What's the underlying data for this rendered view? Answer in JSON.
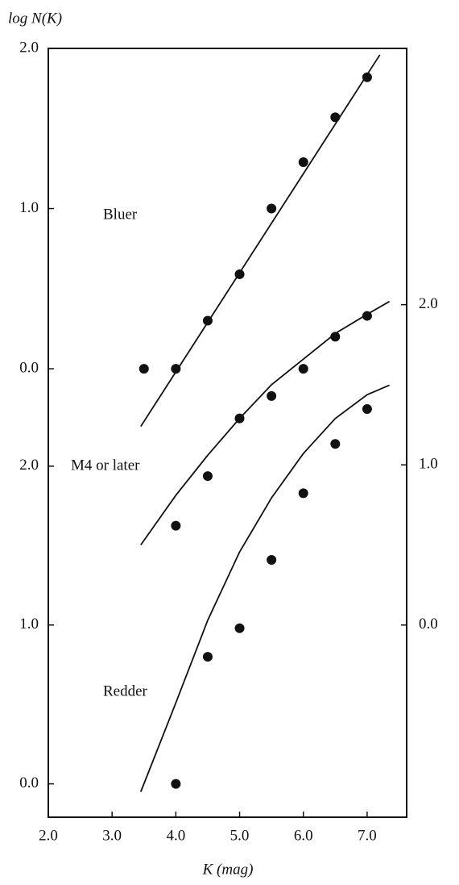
{
  "chart_data": [
    {
      "type": "scatter",
      "ylabel": "log N(K)",
      "xlabel": "K (mag)",
      "annotation": "Bluer",
      "xlim": [
        2.0,
        7.62
      ],
      "xticks": [
        {
          "value": 2,
          "label": "2.0"
        },
        {
          "value": 3,
          "label": "3.0"
        },
        {
          "value": 4,
          "label": "4.0"
        },
        {
          "value": 5,
          "label": "5.0"
        },
        {
          "value": 6,
          "label": "6.0"
        },
        {
          "value": 7,
          "label": "7.0"
        }
      ],
      "x": [
        3.5,
        4.0,
        4.5,
        5.0,
        5.5,
        6.0,
        6.5,
        7.0
      ],
      "values": [
        0.0,
        0.0,
        0.3,
        0.59,
        1.0,
        1.29,
        1.57,
        1.82
      ],
      "fit_x": [
        3.45,
        7.2
      ],
      "fit_values": [
        -0.36,
        1.96
      ],
      "ylim": [
        -2.8,
        2.0
      ],
      "yaxis": "left",
      "yticks": [
        {
          "value": 0,
          "label": "0.0"
        },
        {
          "value": 1,
          "label": "1.0"
        },
        {
          "value": 2,
          "label": "2.0"
        }
      ]
    },
    {
      "type": "scatter",
      "annotation": "M4 or later",
      "x": [
        4.0,
        4.5,
        5.0,
        5.5,
        6.0,
        6.5,
        7.0
      ],
      "values": [
        0.62,
        0.93,
        1.29,
        1.43,
        1.6,
        1.8,
        1.93
      ],
      "fit_x": [
        3.45,
        4.0,
        4.5,
        5.0,
        5.5,
        6.0,
        6.5,
        7.0,
        7.35
      ],
      "fit_values": [
        0.5,
        0.81,
        1.06,
        1.29,
        1.5,
        1.66,
        1.82,
        1.94,
        2.02
      ],
      "ylim": [
        -1.2,
        3.6
      ],
      "yaxis": "right",
      "yticks": [
        {
          "value": 0,
          "label": "0.0"
        },
        {
          "value": 1,
          "label": "1.0"
        },
        {
          "value": 2,
          "label": "2.0"
        }
      ]
    },
    {
      "type": "scatter",
      "annotation": "Redder",
      "x": [
        4.0,
        4.5,
        5.0,
        5.5,
        6.0,
        6.5,
        7.0
      ],
      "values": [
        0.0,
        0.8,
        0.98,
        1.41,
        1.83,
        2.14,
        2.36
      ],
      "fit_x": [
        3.45,
        4.0,
        4.5,
        5.0,
        5.5,
        6.0,
        6.5,
        7.0,
        7.35
      ],
      "fit_values": [
        -0.05,
        0.51,
        1.03,
        1.46,
        1.8,
        2.08,
        2.3,
        2.45,
        2.51
      ],
      "ylim": [
        -0.21,
        4.63
      ],
      "yaxis": "left",
      "yticks": [
        {
          "value": 0,
          "label": "0.0"
        },
        {
          "value": 1,
          "label": "1.0"
        },
        {
          "value": 2,
          "label": "2.0"
        }
      ]
    }
  ]
}
